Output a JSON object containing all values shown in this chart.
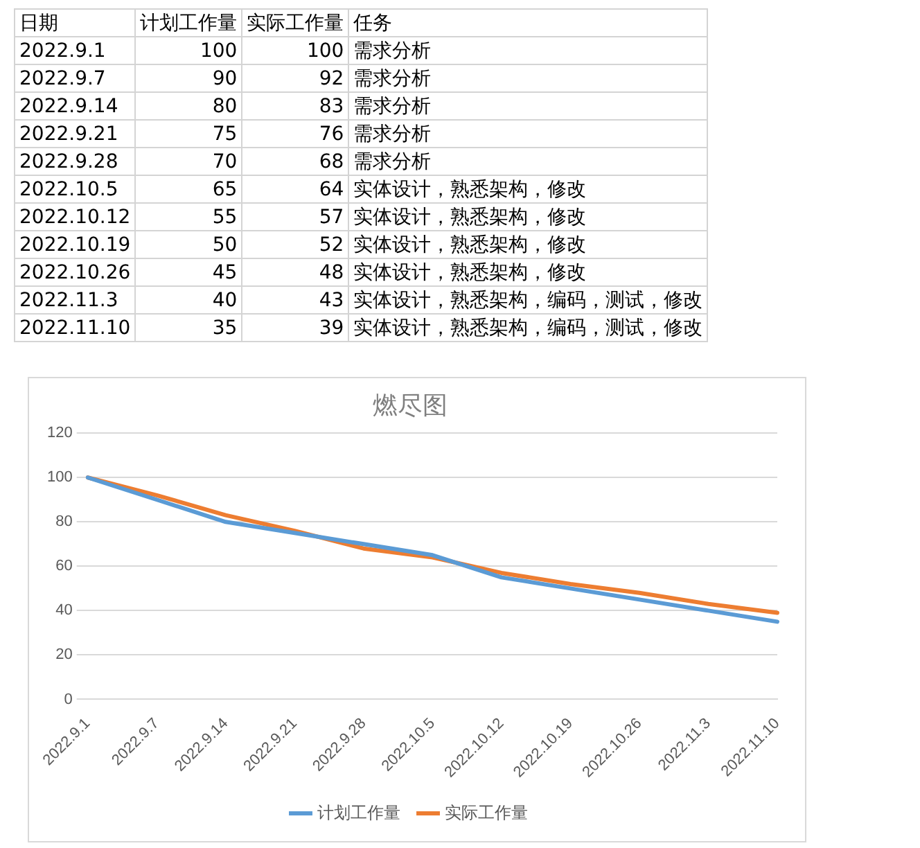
{
  "chart_data": [
    {
      "type": "other",
      "annotations": [
        "日期",
        "计划工作量",
        "实际工作量",
        "任务",
        "2022.9.1",
        "100",
        "100",
        "需求分析",
        "2022.9.7",
        "90",
        "92",
        "需求分析",
        "2022.9.14",
        "80",
        "83",
        "需求分析",
        "2022.9.21",
        "75",
        "76",
        "需求分析",
        "2022.9.28",
        "70",
        "68",
        "需求分析",
        "2022.10.5",
        "65",
        "64",
        "实体设计，熟悉架构，修改",
        "2022.10.12",
        "55",
        "57",
        "实体设计，熟悉架构，修改",
        "2022.10.19",
        "50",
        "52",
        "实体设计，熟悉架构，修改",
        "2022.10.26",
        "45",
        "48",
        "实体设计，熟悉架构，修改",
        "2022.11.3",
        "40",
        "43",
        "实体设计，熟悉架构，编码，测试，修改",
        "2022.11.10",
        "35",
        "39",
        "实体设计，熟悉架构，编码，测试，修改"
      ]
    },
    {
      "type": "line",
      "title": "燃尽图",
      "categories": [
        "2022.9.1",
        "2022.9.7",
        "2022.9.14",
        "2022.9.21",
        "2022.9.28",
        "2022.10.5",
        "2022.10.12",
        "2022.10.19",
        "2022.10.26",
        "2022.11.3",
        "2022.11.10"
      ],
      "series": [
        {
          "name": "计划工作量",
          "color": "#5b9bd5",
          "values": [
            100,
            90,
            80,
            75,
            70,
            65,
            55,
            50,
            45,
            40,
            35
          ]
        },
        {
          "name": "实际工作量",
          "color": "#ed7d31",
          "values": [
            100,
            92,
            83,
            76,
            68,
            64,
            57,
            52,
            48,
            43,
            39
          ]
        }
      ],
      "ylim": [
        0,
        120
      ],
      "yticks": [
        0,
        20,
        40,
        60,
        80,
        100,
        120
      ],
      "grid": "y",
      "legend": "bottom"
    }
  ]
}
